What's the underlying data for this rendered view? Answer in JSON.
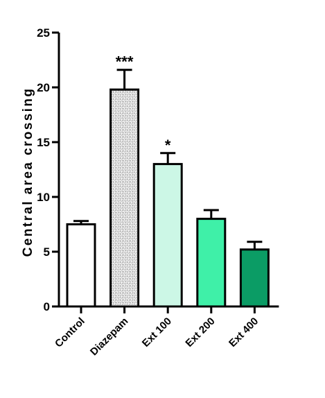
{
  "chart_data": {
    "type": "bar",
    "title": "",
    "xlabel": "",
    "ylabel": "Central area crossing",
    "ylim": [
      0,
      25
    ],
    "yticks": [
      0,
      5,
      10,
      15,
      20,
      25
    ],
    "grid": false,
    "legend": "none",
    "categories": [
      "Control",
      "Diazepam",
      "Ext 100",
      "Ext 200",
      "Ext 400"
    ],
    "values": [
      7.5,
      19.8,
      13.0,
      8.0,
      5.2
    ],
    "errors": [
      0.3,
      1.8,
      1.0,
      0.8,
      0.7
    ],
    "significance": [
      "",
      "***",
      "*",
      "",
      ""
    ],
    "fills": [
      "#ffffff",
      "dotted-pattern",
      "#ccf7e6",
      "#3ff0a8",
      "#0b9c65"
    ]
  }
}
